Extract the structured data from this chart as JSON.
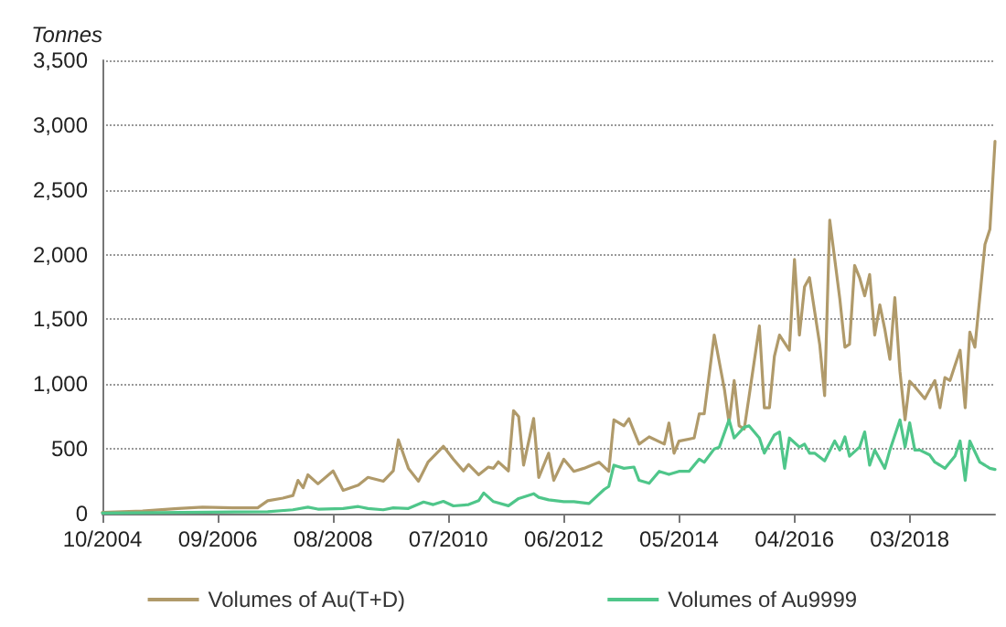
{
  "chart_data": {
    "type": "line",
    "ylabel": "Tonnes",
    "xlim": [
      "2004-10",
      "2019-08"
    ],
    "ylim": [
      0,
      3500
    ],
    "xticks": [
      {
        "value": "2004-10",
        "label": "10/2004"
      },
      {
        "value": "2006-09",
        "label": "09/2006"
      },
      {
        "value": "2008-08",
        "label": "08/2008"
      },
      {
        "value": "2010-07",
        "label": "07/2010"
      },
      {
        "value": "2012-06",
        "label": "06/2012"
      },
      {
        "value": "2014-05",
        "label": "05/2014"
      },
      {
        "value": "2016-04",
        "label": "04/2016"
      },
      {
        "value": "2018-03",
        "label": "03/2018"
      }
    ],
    "yticks": [
      {
        "value": 0,
        "label": "0"
      },
      {
        "value": 500,
        "label": "500"
      },
      {
        "value": 1000,
        "label": "1,000"
      },
      {
        "value": 1500,
        "label": "1,500"
      },
      {
        "value": 2000,
        "label": "2,000"
      },
      {
        "value": 2500,
        "label": "2,500"
      },
      {
        "value": 3000,
        "label": "3,000"
      },
      {
        "value": 3500,
        "label": "3,500"
      }
    ],
    "grid": "y",
    "legend": "bottom",
    "marker": "none",
    "line_style": "solid",
    "series": [
      {
        "name": "Volumes of Au(T+D)",
        "color": "#b09a6a",
        "x": [
          "2004-10",
          "2005-06",
          "2006-01",
          "2006-06",
          "2006-12",
          "2007-05",
          "2007-07",
          "2007-10",
          "2007-12",
          "2008-01",
          "2008-02",
          "2008-03",
          "2008-05",
          "2008-08",
          "2008-10",
          "2009-01",
          "2009-03",
          "2009-06",
          "2009-08",
          "2009-09",
          "2009-11",
          "2010-01",
          "2010-03",
          "2010-06",
          "2010-08",
          "2010-10",
          "2010-11",
          "2011-01",
          "2011-03",
          "2011-04",
          "2011-05",
          "2011-07",
          "2011-08",
          "2011-09",
          "2011-10",
          "2011-12",
          "2012-01",
          "2012-03",
          "2012-04",
          "2012-06",
          "2012-08",
          "2012-10",
          "2013-01",
          "2013-03",
          "2013-04",
          "2013-06",
          "2013-07",
          "2013-09",
          "2013-11",
          "2014-02",
          "2014-03",
          "2014-04",
          "2014-05",
          "2014-08",
          "2014-09",
          "2014-10",
          "2014-12",
          "2015-02",
          "2015-03",
          "2015-04",
          "2015-05",
          "2015-06",
          "2015-07",
          "2015-09",
          "2015-10",
          "2015-11",
          "2015-12",
          "2016-01",
          "2016-03",
          "2016-04",
          "2016-05",
          "2016-06",
          "2016-07",
          "2016-08",
          "2016-09",
          "2016-10",
          "2016-11",
          "2017-01",
          "2017-02",
          "2017-03",
          "2017-04",
          "2017-05",
          "2017-06",
          "2017-07",
          "2017-08",
          "2017-09",
          "2017-10",
          "2017-11",
          "2017-12",
          "2018-01",
          "2018-02",
          "2018-03",
          "2018-04",
          "2018-06",
          "2018-07",
          "2018-08",
          "2018-09",
          "2018-10",
          "2018-11",
          "2018-12",
          "2019-01",
          "2019-02",
          "2019-03",
          "2019-04",
          "2019-06",
          "2019-07",
          "2019-08"
        ],
        "values": [
          10,
          20,
          40,
          50,
          45,
          45,
          100,
          120,
          140,
          257,
          200,
          300,
          230,
          330,
          180,
          220,
          280,
          250,
          330,
          570,
          350,
          250,
          400,
          520,
          420,
          330,
          380,
          300,
          360,
          350,
          400,
          330,
          795,
          750,
          375,
          735,
          280,
          467,
          257,
          420,
          327,
          350,
          397,
          327,
          724,
          678,
          733,
          537,
          593,
          537,
          700,
          467,
          560,
          584,
          771,
          771,
          1379,
          958,
          701,
          1028,
          678,
          654,
          911,
          1449,
          818,
          818,
          1215,
          1379,
          1262,
          1963,
          1379,
          1752,
          1822,
          1565,
          1308,
          911,
          2266,
          1659,
          1285,
          1308,
          1916,
          1822,
          1682,
          1846,
          1379,
          1612,
          1425,
          1192,
          1668,
          1098,
          724,
          1023,
          981,
          888,
          958,
          1028,
          818,
          1051,
          1028,
          1145,
          1262,
          818,
          1402,
          1285,
          2079,
          2196,
          2874
        ]
      },
      {
        "name": "Volumes of Au9999",
        "color": "#4fc68a",
        "x": [
          "2004-10",
          "2006-02",
          "2007-07",
          "2007-12",
          "2008-03",
          "2008-05",
          "2008-10",
          "2009-01",
          "2009-03",
          "2009-06",
          "2009-08",
          "2009-11",
          "2010-02",
          "2010-04",
          "2010-06",
          "2010-08",
          "2010-11",
          "2011-01",
          "2011-02",
          "2011-04",
          "2011-07",
          "2011-09",
          "2011-12",
          "2012-01",
          "2012-03",
          "2012-06",
          "2012-08",
          "2012-11",
          "2013-02",
          "2013-03",
          "2013-04",
          "2013-06",
          "2013-08",
          "2013-09",
          "2013-11",
          "2014-01",
          "2014-03",
          "2014-05",
          "2014-07",
          "2014-09",
          "2014-10",
          "2014-12",
          "2015-01",
          "2015-03",
          "2015-04",
          "2015-06",
          "2015-07",
          "2015-09",
          "2015-10",
          "2015-12",
          "2016-01",
          "2016-02",
          "2016-03",
          "2016-05",
          "2016-06",
          "2016-07",
          "2016-08",
          "2016-10",
          "2016-12",
          "2017-01",
          "2017-02",
          "2017-03",
          "2017-05",
          "2017-06",
          "2017-07",
          "2017-08",
          "2017-10",
          "2017-11",
          "2018-01",
          "2018-02",
          "2018-03",
          "2018-04",
          "2018-05",
          "2018-07",
          "2018-08",
          "2018-09",
          "2018-10",
          "2018-12",
          "2019-01",
          "2019-02",
          "2019-03",
          "2019-05",
          "2019-06",
          "2019-07",
          "2019-08"
        ],
        "values": [
          5,
          10,
          15,
          30,
          50,
          35,
          40,
          55,
          40,
          30,
          45,
          40,
          90,
          70,
          95,
          60,
          70,
          100,
          160,
          93,
          61,
          117,
          154,
          126,
          107,
          93,
          93,
          79,
          187,
          210,
          374,
          350,
          360,
          257,
          234,
          327,
          303,
          327,
          327,
          421,
          397,
          500,
          514,
          724,
          584,
          668,
          678,
          584,
          467,
          608,
          631,
          350,
          584,
          514,
          537,
          467,
          467,
          407,
          561,
          491,
          593,
          444,
          514,
          631,
          374,
          491,
          350,
          491,
          724,
          514,
          701,
          491,
          491,
          453,
          397,
          374,
          350,
          444,
          561,
          257,
          561,
          397,
          374,
          350,
          341
        ]
      }
    ]
  }
}
